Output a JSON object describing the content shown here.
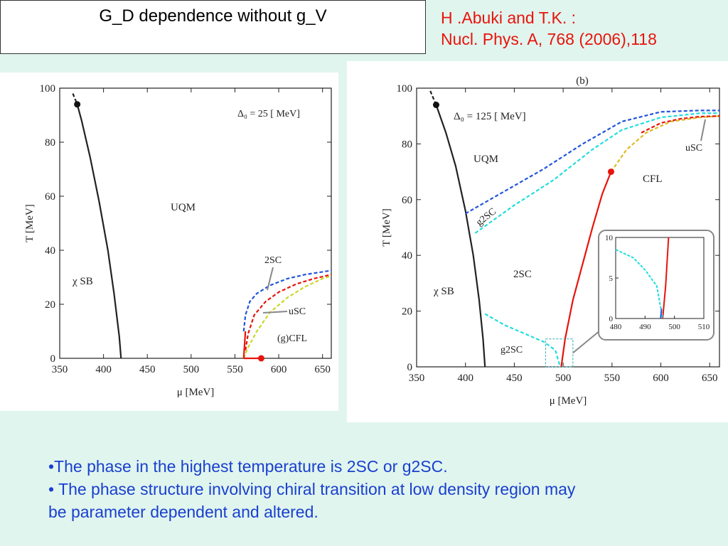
{
  "header": {
    "title": "G_D dependence without g_V",
    "ref_line1": "H .Abuki and T.K. :",
    "ref_line2": "Nucl. Phys. A, 768 (2006),118"
  },
  "bullets": [
    "•The phase in the highest temperature is  2SC or g2SC.",
    "•  The phase structure involving chiral transition at low density region may",
    "be parameter dependent and altered."
  ],
  "chart_data": [
    {
      "type": "line",
      "panel": "left",
      "xlabel": "μ [MeV]",
      "ylabel": "T [MeV]",
      "xlim": [
        350,
        660
      ],
      "ylim": [
        0,
        100
      ],
      "xticks": [
        350,
        400,
        450,
        500,
        550,
        600,
        650
      ],
      "yticks": [
        0,
        20,
        40,
        60,
        80,
        100
      ],
      "grid": false,
      "annotations": [
        "Δ₀ = 25 [ MeV]",
        "UQM",
        "χ SB",
        "2SC",
        "uSC",
        "(g)CFL"
      ],
      "series": [
        {
          "style": "solid",
          "color": "#222222",
          "x": [
            370,
            375,
            385,
            395,
            405,
            412,
            418,
            420
          ],
          "y": [
            94,
            88,
            74,
            58,
            40,
            24,
            8,
            0
          ]
        },
        {
          "style": "dashed",
          "color": "#222222",
          "x": [
            365,
            370
          ],
          "y": [
            98,
            94
          ]
        },
        {
          "style": "dashed",
          "color": "#2255dd",
          "x": [
            560,
            562,
            567,
            575,
            590,
            610,
            630,
            650,
            660
          ],
          "y": [
            10,
            16,
            21,
            24,
            27,
            29.5,
            31,
            32,
            32.5
          ]
        },
        {
          "style": "dashed",
          "color": "#e8140c",
          "x": [
            562,
            565,
            572,
            585,
            600,
            620,
            640,
            660
          ],
          "y": [
            3,
            9,
            16,
            21,
            24.5,
            27.5,
            29.5,
            31
          ]
        },
        {
          "style": "dashed",
          "color": "#c8d828",
          "x": [
            560,
            565,
            575,
            590,
            610,
            630,
            650,
            660
          ],
          "y": [
            0,
            4,
            10,
            17,
            22.5,
            26.5,
            29.5,
            30.5
          ]
        },
        {
          "style": "solid",
          "color": "#e8140c",
          "x": [
            560,
            562
          ],
          "y": [
            0,
            10
          ]
        },
        {
          "style": "solid",
          "color": "#e8140c",
          "x": [
            560,
            580
          ],
          "y": [
            0,
            0
          ]
        }
      ],
      "points": [
        {
          "x": 370,
          "y": 94,
          "color": "#111111"
        },
        {
          "x": 580,
          "y": 0,
          "color": "#e8140c"
        }
      ]
    },
    {
      "type": "line",
      "panel": "right",
      "title": "(b)",
      "xlabel": "μ [MeV]",
      "ylabel": "T [MeV]",
      "xlim": [
        350,
        660
      ],
      "ylim": [
        0,
        100
      ],
      "xticks": [
        350,
        400,
        450,
        500,
        550,
        600,
        650
      ],
      "yticks": [
        0,
        20,
        40,
        60,
        80,
        100
      ],
      "grid": false,
      "annotations": [
        "Δ₀ = 125 [ MeV]",
        "UQM",
        "CFL",
        "uSC",
        "g2SC",
        "2SC",
        "χ SB",
        "g2SC"
      ],
      "series": [
        {
          "style": "solid",
          "color": "#222222",
          "x": [
            370,
            380,
            390,
            400,
            408,
            414,
            418,
            420
          ],
          "y": [
            94,
            84,
            72,
            56,
            40,
            24,
            10,
            0
          ]
        },
        {
          "style": "dashed",
          "color": "#222222",
          "x": [
            364,
            370
          ],
          "y": [
            99,
            94
          ]
        },
        {
          "style": "dashed",
          "color": "#2255dd",
          "x": [
            400,
            440,
            480,
            520,
            560,
            600,
            640,
            660
          ],
          "y": [
            55,
            63,
            71,
            80,
            88,
            91.5,
            92,
            92
          ]
        },
        {
          "style": "dashed",
          "color": "#22dddd",
          "x": [
            410,
            450,
            490,
            530,
            560,
            600,
            640,
            660
          ],
          "y": [
            48,
            58,
            67,
            78,
            85,
            89.5,
            91,
            91
          ]
        },
        {
          "style": "solid",
          "color": "#e8140c",
          "x": [
            498,
            502,
            510,
            520,
            530,
            540,
            549
          ],
          "y": [
            0,
            10,
            24,
            37,
            50,
            62,
            70
          ]
        },
        {
          "style": "dashed",
          "color": "#ddbb22",
          "x": [
            549,
            565,
            585,
            610,
            640,
            660
          ],
          "y": [
            70,
            78,
            84,
            88,
            89.5,
            90
          ]
        },
        {
          "style": "dashed",
          "color": "#e8140c",
          "x": [
            580,
            600,
            620,
            640,
            660
          ],
          "y": [
            84,
            87.5,
            89,
            89.8,
            90
          ]
        },
        {
          "style": "dashed",
          "color": "#22dddd",
          "x": [
            420,
            440,
            460,
            480,
            492,
            497
          ],
          "y": [
            19,
            15,
            12,
            9,
            6,
            0
          ]
        }
      ],
      "points": [
        {
          "x": 370,
          "y": 94,
          "color": "#111111"
        },
        {
          "x": 549,
          "y": 70,
          "color": "#e8140c"
        }
      ],
      "inset": {
        "xlim": [
          480,
          510
        ],
        "ylim": [
          0,
          10
        ],
        "xticks": [
          480,
          490,
          500,
          510
        ],
        "yticks": [
          0,
          5,
          10
        ],
        "series": [
          {
            "style": "solid",
            "color": "#e8140c",
            "x": [
              496,
              497,
              498
            ],
            "y": [
              0,
              4,
              10
            ]
          },
          {
            "style": "dashed",
            "color": "#22dddd",
            "x": [
              480,
              486,
              490,
              494,
              496
            ],
            "y": [
              8.5,
              7.5,
              6,
              4,
              0
            ]
          },
          {
            "style": "solid",
            "color": "#2255dd",
            "x": [
              495.3,
              495.6
            ],
            "y": [
              0,
              1.2
            ]
          }
        ]
      }
    }
  ]
}
